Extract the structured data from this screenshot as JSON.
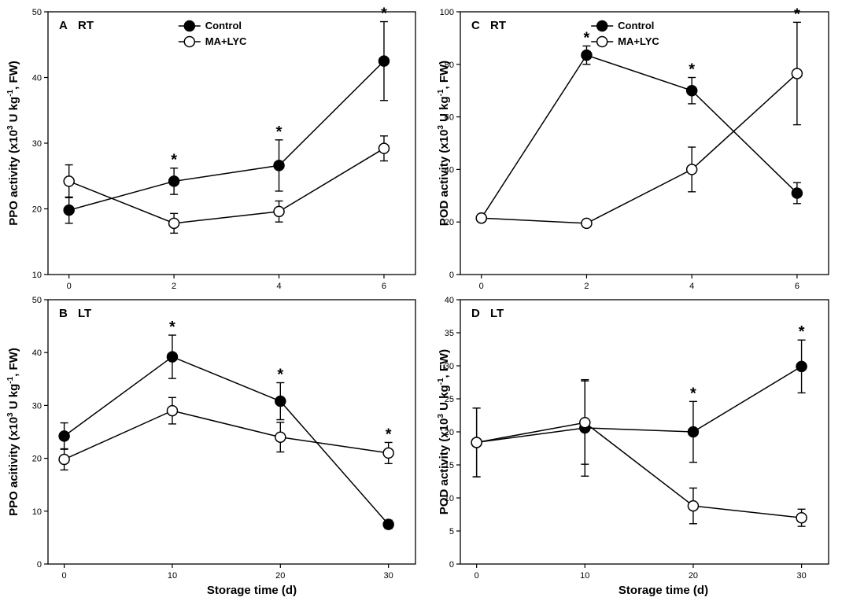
{
  "figure": {
    "x_axis_title": "Storage time (d)",
    "legend": {
      "control": "Control",
      "treatment": "MA+LYC"
    }
  },
  "chart_data": [
    {
      "id": "A",
      "type": "line",
      "letter": "A",
      "condition": "RT",
      "ylabel_prefix": "PPO activity (x10",
      "ylabel_exp": "3",
      "ylabel_mid": " U kg",
      "ylabel_exp2": "-1",
      "ylabel_suffix": ", FW)",
      "xlim": [
        -0.4,
        6.6
      ],
      "ylim": [
        10,
        50
      ],
      "xticks": [
        0,
        2,
        4,
        6
      ],
      "yticks": [
        10,
        20,
        30,
        40,
        50
      ],
      "show_legend": true,
      "series": [
        {
          "name": "Control",
          "filled": true,
          "x": [
            0,
            2,
            4,
            6
          ],
          "y": [
            19.8,
            24.2,
            26.6,
            42.5
          ],
          "err": [
            2.0,
            2.0,
            3.9,
            6.0
          ]
        },
        {
          "name": "MA+LYC",
          "filled": false,
          "x": [
            0,
            2,
            4,
            6
          ],
          "y": [
            24.2,
            17.8,
            19.6,
            29.2
          ],
          "err": [
            2.5,
            1.5,
            1.6,
            1.9
          ]
        }
      ],
      "significance": [
        2,
        4,
        6
      ]
    },
    {
      "id": "B",
      "type": "line",
      "letter": "B",
      "condition": "LT",
      "ylabel_prefix": "PPO acitivity (x10",
      "ylabel_exp": "3",
      "ylabel_mid": " U kg",
      "ylabel_exp2": "-1",
      "ylabel_suffix": ", FW)",
      "xlim": [
        -1.5,
        32.5
      ],
      "ylim": [
        0,
        50
      ],
      "xticks": [
        0,
        10,
        20,
        30
      ],
      "yticks": [
        0,
        10,
        20,
        30,
        40,
        50
      ],
      "show_legend": false,
      "series": [
        {
          "name": "Control",
          "filled": true,
          "x": [
            0,
            10,
            20,
            30
          ],
          "y": [
            24.2,
            39.2,
            30.8,
            7.5
          ],
          "err": [
            2.5,
            4.1,
            3.5,
            0.8
          ]
        },
        {
          "name": "MA+LYC",
          "filled": false,
          "x": [
            0,
            10,
            20,
            30
          ],
          "y": [
            19.8,
            29.0,
            24.0,
            21.0
          ],
          "err": [
            2.0,
            2.5,
            2.8,
            2.0
          ]
        }
      ],
      "significance": [
        10,
        20,
        30
      ]
    },
    {
      "id": "C",
      "type": "line",
      "letter": "C",
      "condition": "RT",
      "ylabel_prefix": "POD activity (x10",
      "ylabel_exp": "3",
      "ylabel_mid": " U kg",
      "ylabel_exp2": "-1",
      "ylabel_suffix": ", FW)",
      "xlim": [
        -0.4,
        6.6
      ],
      "ylim": [
        0,
        100
      ],
      "xticks": [
        0,
        2,
        4,
        6
      ],
      "yticks": [
        0,
        20,
        40,
        60,
        80,
        100
      ],
      "show_legend": true,
      "series": [
        {
          "name": "Control",
          "filled": true,
          "x": [
            0,
            2,
            4,
            6
          ],
          "y": [
            21.5,
            83.5,
            70.0,
            31.0
          ],
          "err": [
            1.0,
            3.5,
            5.0,
            4.0
          ]
        },
        {
          "name": "MA+LYC",
          "filled": false,
          "x": [
            0,
            2,
            4,
            6
          ],
          "y": [
            21.5,
            19.5,
            40.0,
            76.5
          ],
          "err": [
            1.0,
            1.0,
            8.5,
            19.5
          ]
        }
      ],
      "significance": [
        2,
        4,
        6
      ]
    },
    {
      "id": "D",
      "type": "line",
      "letter": "D",
      "condition": "LT",
      "ylabel_prefix": "POD activity (x10",
      "ylabel_exp": "3",
      "ylabel_mid": " U kg",
      "ylabel_exp2": "-1",
      "ylabel_suffix": ", FW)",
      "xlim": [
        -1.5,
        32.5
      ],
      "ylim": [
        0,
        40
      ],
      "xticks": [
        0,
        10,
        20,
        30
      ],
      "yticks": [
        0,
        5,
        10,
        15,
        20,
        25,
        30,
        35,
        40
      ],
      "show_legend": false,
      "series": [
        {
          "name": "Control",
          "filled": true,
          "x": [
            0,
            10,
            20,
            30
          ],
          "y": [
            18.4,
            20.6,
            20.0,
            29.9
          ],
          "err": [
            5.2,
            7.3,
            4.6,
            4.0
          ]
        },
        {
          "name": "MA+LYC",
          "filled": false,
          "x": [
            0,
            10,
            20,
            30
          ],
          "y": [
            18.4,
            21.4,
            8.8,
            7.0
          ],
          "err": [
            5.2,
            6.3,
            2.7,
            1.3
          ]
        }
      ],
      "significance": [
        20,
        30
      ]
    }
  ]
}
